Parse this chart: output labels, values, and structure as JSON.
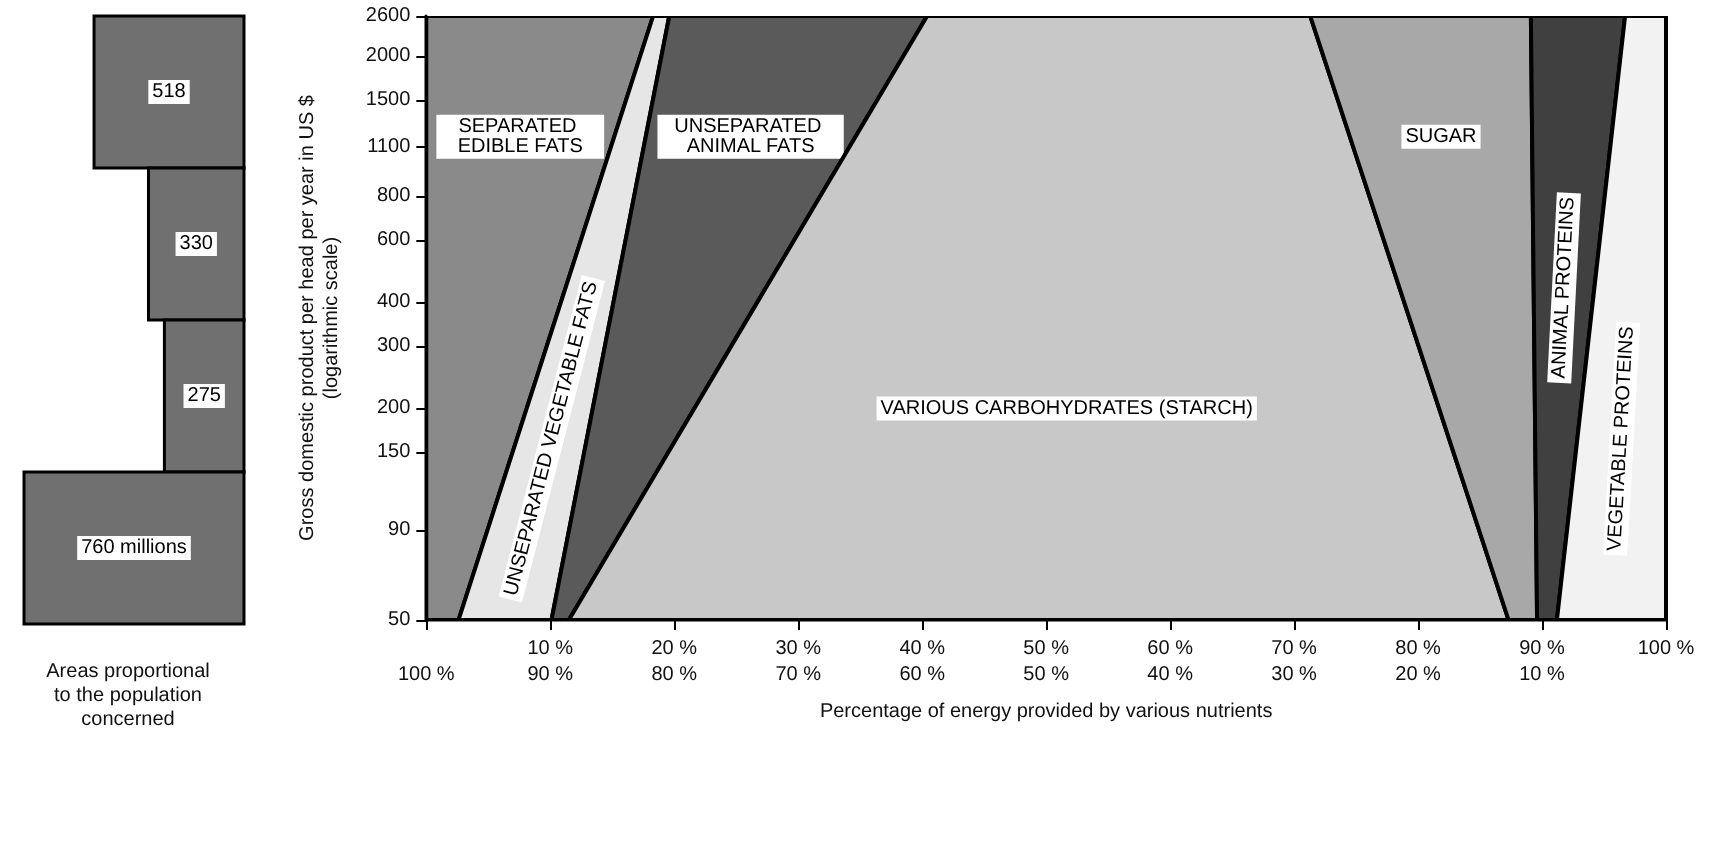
{
  "chart_data": [
    {
      "type": "other",
      "values": [
        518,
        330,
        275,
        760
      ],
      "value_labels": [
        "518",
        "330",
        "275",
        "760 millions"
      ],
      "color": "#707070",
      "xlabel": "Areas proportional\nto the population\nconcerned"
    },
    {
      "type": "area",
      "stacked": true,
      "orientation": "horizontal",
      "x": [
        50,
        2600
      ],
      "series": [
        {
          "name": "SEPARATED EDIBLE FATS",
          "color": "#8a8a8a",
          "values": [
            2.6,
            18.3
          ]
        },
        {
          "name": "UNSEPARATED VEGETABLE FATS",
          "color": "#e6e6e6",
          "values": [
            7.5,
            1.3
          ]
        },
        {
          "name": "UNSEPARATED ANIMAL FATS",
          "color": "#5a5a5a",
          "values": [
            1.4,
            20.8
          ]
        },
        {
          "name": "VARIOUS CARBOHYDRATES (STARCH)",
          "color": "#c8c8c8",
          "values": [
            75.8,
            30.9
          ]
        },
        {
          "name": "SUGAR",
          "color": "#a8a8a8",
          "values": [
            2.3,
            17.8
          ]
        },
        {
          "name": "ANIMAL PROTEINS",
          "color": "#404040",
          "values": [
            1.6,
            7.6
          ]
        },
        {
          "name": "VEGETABLE PROTEINS",
          "color": "#f2f2f2",
          "values": [
            8.8,
            3.3
          ]
        }
      ],
      "xlim": [
        0,
        100
      ],
      "xticks": [
        {
          "value": 0,
          "label": null
        },
        {
          "value": 10,
          "label": "10 %"
        },
        {
          "value": 20,
          "label": "20 %"
        },
        {
          "value": 30,
          "label": "30 %"
        },
        {
          "value": 40,
          "label": "40 %"
        },
        {
          "value": 50,
          "label": "50 %"
        },
        {
          "value": 60,
          "label": "60 %"
        },
        {
          "value": 70,
          "label": "70 %"
        },
        {
          "value": 80,
          "label": "80 %"
        },
        {
          "value": 90,
          "label": "90 %"
        },
        {
          "value": 100,
          "label": "100 %"
        }
      ],
      "x2lim": [
        100,
        0
      ],
      "x2ticks": [
        {
          "value": 100,
          "label": "100 %"
        },
        {
          "value": 90,
          "label": "90 %"
        },
        {
          "value": 80,
          "label": "80 %"
        },
        {
          "value": 70,
          "label": "70 %"
        },
        {
          "value": 60,
          "label": "60 %"
        },
        {
          "value": 50,
          "label": "50 %"
        },
        {
          "value": 40,
          "label": "40 %"
        },
        {
          "value": 30,
          "label": "30 %"
        },
        {
          "value": 20,
          "label": "20 %"
        },
        {
          "value": 10,
          "label": "10 %"
        }
      ],
      "ylim": [
        50,
        2600
      ],
      "yticks": [
        50,
        90,
        150,
        200,
        300,
        400,
        600,
        800,
        1100,
        1500,
        2000,
        2600
      ],
      "log": "y",
      "xlabel": "Percentage of energy provided by various nutrients",
      "ylabel": "Gross domestic product per head per year in US $\n(logarithmic scale)"
    }
  ]
}
